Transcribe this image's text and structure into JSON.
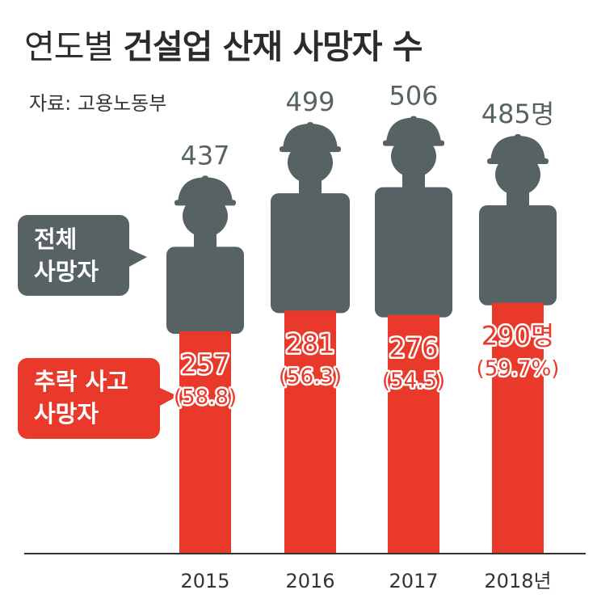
{
  "title": {
    "prefix": "연도별",
    "main": "건설업 산재 사망자 수"
  },
  "source": "자료: 고용노동부",
  "legend": {
    "total": {
      "line1": "전체",
      "line2": "사망자"
    },
    "fall": {
      "line1": "추락 사고",
      "line2": "사망자"
    }
  },
  "colors": {
    "total": "#576264",
    "fall": "#e8392a",
    "axis": "#333333",
    "text": "#333333"
  },
  "chart_data": {
    "type": "bar",
    "title": "연도별 건설업 산재 사망자 수",
    "categories": [
      "2015",
      "2016",
      "2017",
      "2018"
    ],
    "category_labels": [
      "2015",
      "2016",
      "2017",
      "2018년"
    ],
    "series": [
      {
        "name": "전체 사망자",
        "values": [
          437,
          499,
          506,
          485
        ],
        "labels": [
          "437",
          "499",
          "506",
          "485명"
        ]
      },
      {
        "name": "추락 사고 사망자",
        "values": [
          257,
          281,
          276,
          290
        ],
        "labels": [
          "257",
          "281",
          "276",
          "290명"
        ]
      }
    ],
    "fall_share_pct": [
      58.8,
      56.3,
      54.5,
      59.7
    ],
    "fall_share_labels": [
      "(58.8)",
      "(56.3)",
      "(54.5)",
      "(59.7%)"
    ],
    "ylim": [
      0,
      510
    ]
  }
}
